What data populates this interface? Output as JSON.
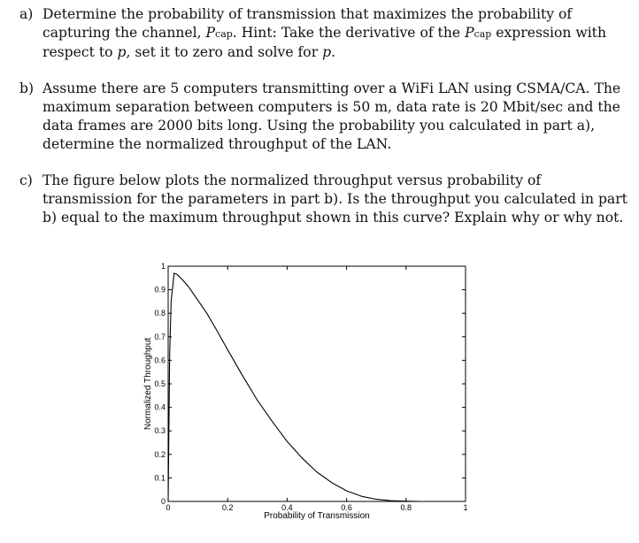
{
  "questions": [
    {
      "label": "a)",
      "parts": [
        "Determine the probability of transmission that maximizes the probability of capturing the channel, ",
        "P",
        "cap",
        ". Hint: Take the derivative of the ",
        "P",
        "cap",
        " expression with respect to ",
        "p",
        ", set it to zero and solve for ",
        "p",
        "."
      ]
    },
    {
      "label": "b)",
      "text": "Assume there are 5 computers transmitting over a WiFi LAN using CSMA/CA. The maximum separation between computers is 50 m, data rate is 20 Mbit/sec and the data frames are 2000 bits long. Using the probability you calculated in part a), determine the normalized throughput of the LAN."
    },
    {
      "label": "c)",
      "text": "The figure below plots the normalized throughput versus probability of transmission for the parameters in part b). Is the throughput you calculated in part b) equal to the maximum throughput shown in this curve? Explain why or why not."
    }
  ],
  "chart_data": {
    "type": "line",
    "xlabel": "Probability of Transmission",
    "ylabel": "Normalized Throughput",
    "xlim": [
      0,
      1
    ],
    "ylim": [
      0,
      1
    ],
    "xticks": [
      "0",
      "0.2",
      "0.4",
      "0.6",
      "0.8",
      "1"
    ],
    "yticks": [
      "0",
      "0.1",
      "0.2",
      "0.3",
      "0.4",
      "0.5",
      "0.6",
      "0.7",
      "0.8",
      "0.9",
      "1"
    ],
    "grid": false,
    "series": [
      {
        "color": "#000000",
        "x": [
          0.0,
          0.005,
          0.01,
          0.02,
          0.03,
          0.05,
          0.07,
          0.1,
          0.13,
          0.16,
          0.2,
          0.25,
          0.3,
          0.35,
          0.4,
          0.45,
          0.5,
          0.55,
          0.6,
          0.65,
          0.7,
          0.75,
          0.8,
          0.85,
          0.9,
          0.95,
          1.0
        ],
        "y": [
          0.0,
          0.62,
          0.85,
          0.97,
          0.965,
          0.94,
          0.91,
          0.855,
          0.8,
          0.735,
          0.645,
          0.535,
          0.43,
          0.34,
          0.255,
          0.185,
          0.125,
          0.08,
          0.045,
          0.022,
          0.009,
          0.003,
          0.001,
          0.0,
          0.0,
          0.0,
          0.0
        ]
      }
    ]
  }
}
